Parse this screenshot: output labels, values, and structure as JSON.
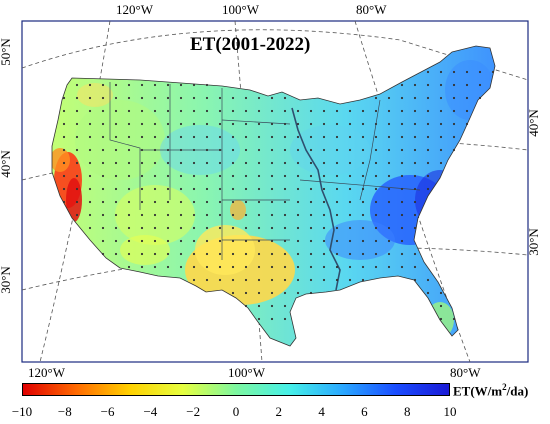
{
  "title": "ET(2001-2022)",
  "top_lon_labels": [
    "120°W",
    "100°W",
    "80°W"
  ],
  "bottom_lon_labels": [
    "120°W",
    "100°W",
    "80°W"
  ],
  "left_lat_labels": [
    "50°N",
    "40°N",
    "30°N"
  ],
  "right_lat_labels": [
    "40°N",
    "30°N"
  ],
  "colorbar": {
    "label_prefix": "ET(W/m",
    "label_sup": "2",
    "label_suffix": "/da)",
    "ticks": [
      "−10",
      "−8",
      "−6",
      "−4",
      "−2",
      "0",
      "2",
      "4",
      "6",
      "8",
      "10"
    ],
    "range": [
      -10,
      10
    ],
    "colors": [
      "#e00000",
      "#ff6a00",
      "#ffd000",
      "#e6ff40",
      "#7df7a0",
      "#46f0e8",
      "#2aa8ff",
      "#1a4dff",
      "#1a1ad6"
    ]
  },
  "colors": {
    "frame": "#1a2a80",
    "state_border": "#3a4a5a",
    "mississippi": "#2f4f6f",
    "graticule": "#555555"
  }
}
